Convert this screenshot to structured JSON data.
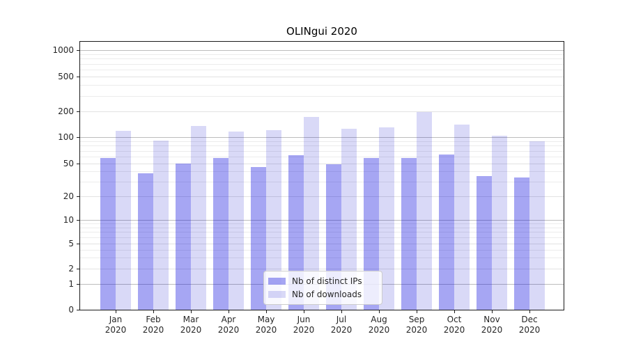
{
  "chart_data": {
    "type": "bar",
    "title": "OLINgui 2020",
    "categories": [
      "Jan 2020",
      "Feb 2020",
      "Mar 2020",
      "Apr 2020",
      "May 2020",
      "Jun 2020",
      "Jul 2020",
      "Aug 2020",
      "Sep 2020",
      "Oct 2020",
      "Nov 2020",
      "Dec 2020"
    ],
    "series": [
      {
        "name": "Nb of distinct IPs",
        "color": "#a6a6f3",
        "fill": "rgba(0,0,220,0.35)",
        "values": [
          58,
          38,
          50,
          58,
          45,
          62,
          49,
          58,
          58,
          63,
          35,
          34
        ]
      },
      {
        "name": "Nb of downloads",
        "color": "#d9d9f7",
        "fill": "rgba(0,0,200,0.15)",
        "values": [
          118,
          91,
          135,
          116,
          120,
          172,
          125,
          130,
          195,
          140,
          104,
          90
        ]
      }
    ],
    "yscale": "symlog",
    "yticks": [
      0,
      1,
      2,
      5,
      10,
      20,
      50,
      100,
      200,
      500,
      1000
    ],
    "ylim": [
      0,
      1300
    ],
    "xlabel": "",
    "ylabel": "",
    "grid": true,
    "legend": {
      "position": "lower-center",
      "entries": [
        "Nb of distinct IPs",
        "Nb of downloads"
      ]
    }
  },
  "colors": {
    "grid_major": "#bdbdbd",
    "grid_minor": "#ececec",
    "spine": "#1a1a1a",
    "text": "#262626",
    "background": "#ffffff"
  }
}
